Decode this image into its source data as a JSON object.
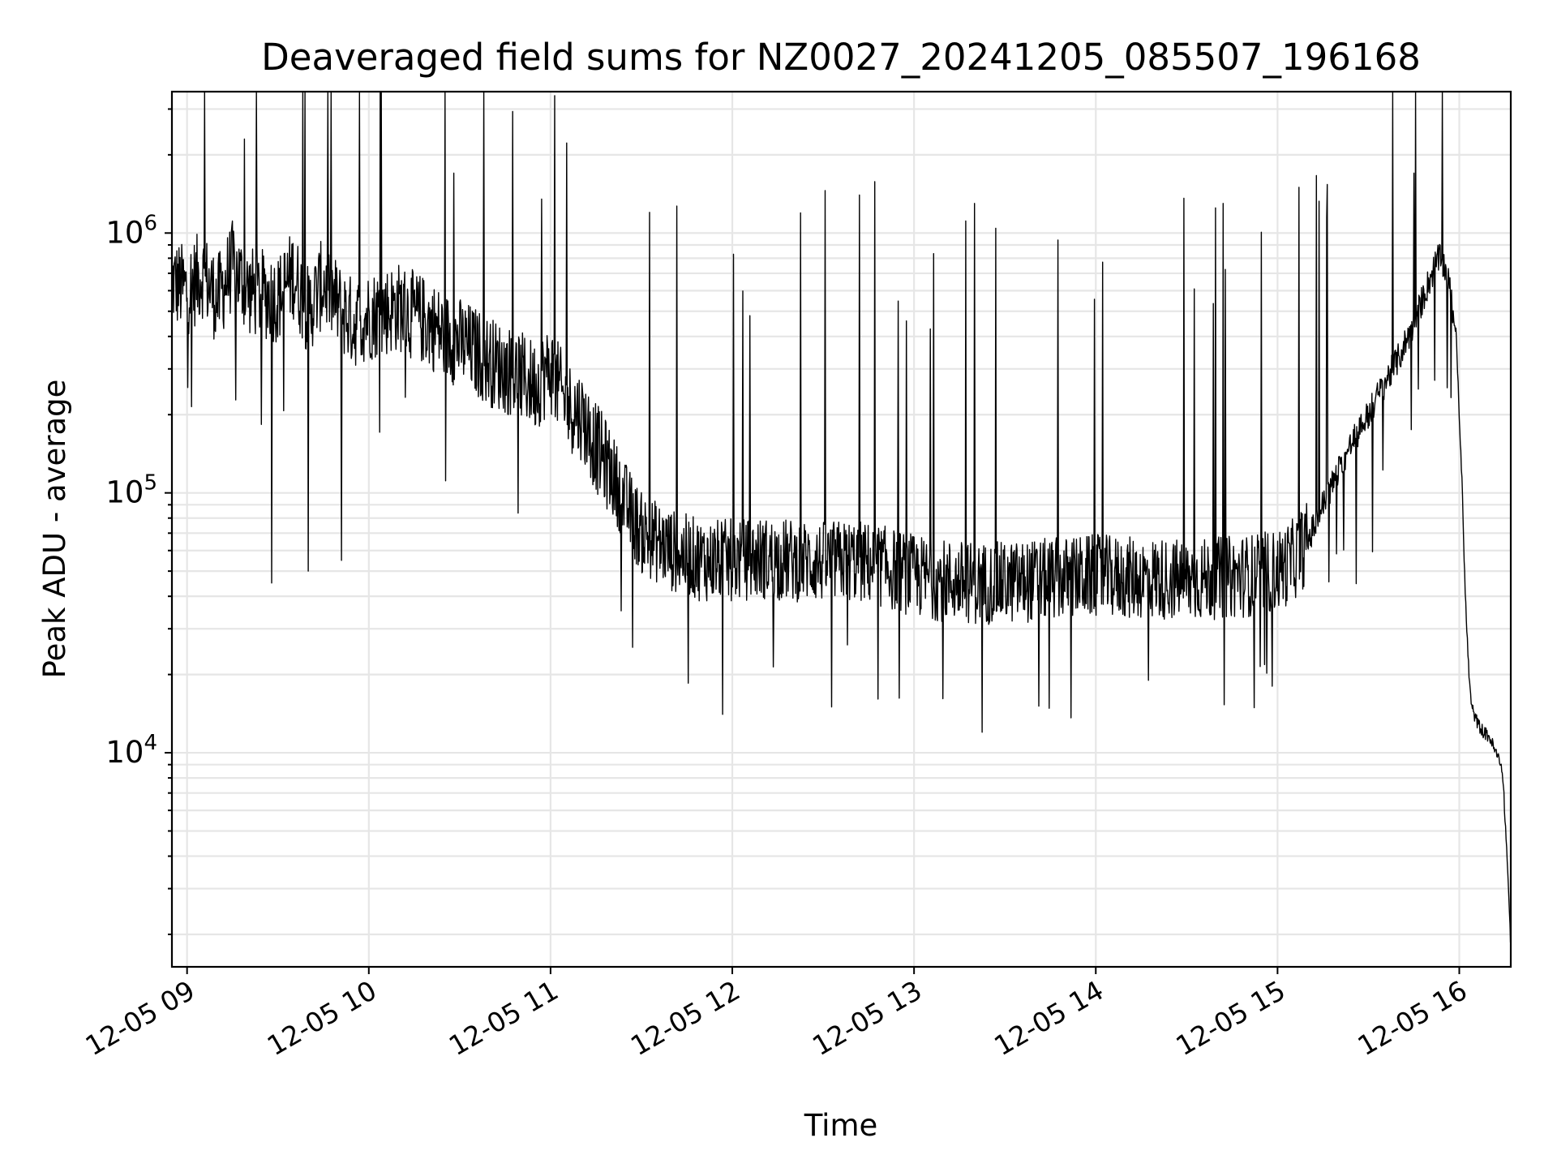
{
  "chart_data": {
    "type": "line",
    "title": "Deaveraged field sums for NZ0027_20241205_085507_196168",
    "xlabel": "Time",
    "ylabel": "Peak ADU - average",
    "yscale": "log",
    "xlim": [
      "2024-12-05 08:55",
      "2024-12-05 16:17"
    ],
    "ylim": [
      1500,
      3500000
    ],
    "grid": true,
    "x_ticks": [
      "12-05 09",
      "12-05 10",
      "12-05 11",
      "12-05 12",
      "12-05 13",
      "12-05 14",
      "12-05 15",
      "12-05 16"
    ],
    "y_ticks": [
      {
        "base": "10",
        "exp": "4",
        "value": 10000
      },
      {
        "base": "10",
        "exp": "5",
        "value": 100000
      },
      {
        "base": "10",
        "exp": "6",
        "value": 1000000
      }
    ],
    "series": [
      {
        "color": "#000000",
        "x": [
          "2024-12-05 08:55",
          "2024-12-05 09:00",
          "2024-12-05 09:05",
          "2024-12-05 09:10",
          "2024-12-05 09:15",
          "2024-12-05 09:20",
          "2024-12-05 09:25",
          "2024-12-05 09:30",
          "2024-12-05 09:35",
          "2024-12-05 09:40",
          "2024-12-05 09:45",
          "2024-12-05 09:50",
          "2024-12-05 09:55",
          "2024-12-05 10:00",
          "2024-12-05 10:05",
          "2024-12-05 10:10",
          "2024-12-05 10:15",
          "2024-12-05 10:20",
          "2024-12-05 10:25",
          "2024-12-05 10:30",
          "2024-12-05 10:35",
          "2024-12-05 10:40",
          "2024-12-05 10:45",
          "2024-12-05 10:50",
          "2024-12-05 10:55",
          "2024-12-05 11:00",
          "2024-12-05 11:05",
          "2024-12-05 11:10",
          "2024-12-05 11:15",
          "2024-12-05 11:20",
          "2024-12-05 11:25",
          "2024-12-05 11:30",
          "2024-12-05 11:40",
          "2024-12-05 11:50",
          "2024-12-05 12:00",
          "2024-12-05 12:10",
          "2024-12-05 12:20",
          "2024-12-05 12:30",
          "2024-12-05 12:40",
          "2024-12-05 12:50",
          "2024-12-05 13:00",
          "2024-12-05 13:10",
          "2024-12-05 13:20",
          "2024-12-05 13:30",
          "2024-12-05 13:40",
          "2024-12-05 13:50",
          "2024-12-05 14:00",
          "2024-12-05 14:10",
          "2024-12-05 14:20",
          "2024-12-05 14:30",
          "2024-12-05 14:40",
          "2024-12-05 14:50",
          "2024-12-05 15:00",
          "2024-12-05 15:05",
          "2024-12-05 15:10",
          "2024-12-05 15:15",
          "2024-12-05 15:20",
          "2024-12-05 15:25",
          "2024-12-05 15:30",
          "2024-12-05 15:35",
          "2024-12-05 15:40",
          "2024-12-05 15:45",
          "2024-12-05 15:50",
          "2024-12-05 15:53",
          "2024-12-05 15:55",
          "2024-12-05 15:57",
          "2024-12-05 15:59",
          "2024-12-05 16:00",
          "2024-12-05 16:01",
          "2024-12-05 16:02",
          "2024-12-05 16:03",
          "2024-12-05 16:04",
          "2024-12-05 16:06",
          "2024-12-05 16:08",
          "2024-12-05 16:10",
          "2024-12-05 16:12",
          "2024-12-05 16:14",
          "2024-12-05 16:15",
          "2024-12-05 16:16",
          "2024-12-05 16:17"
        ],
        "y": [
          650000,
          600000,
          700000,
          550000,
          750000,
          600000,
          580000,
          560000,
          700000,
          500000,
          650000,
          520000,
          450000,
          480000,
          500000,
          520000,
          480000,
          450000,
          400000,
          380000,
          350000,
          320000,
          300000,
          280000,
          260000,
          300000,
          220000,
          200000,
          150000,
          120000,
          90000,
          70000,
          60000,
          55000,
          55000,
          56000,
          55000,
          54000,
          55000,
          52000,
          48000,
          46000,
          45000,
          45000,
          46000,
          47000,
          48000,
          47000,
          47000,
          46000,
          47000,
          48000,
          50000,
          55000,
          65000,
          90000,
          120000,
          160000,
          200000,
          260000,
          330000,
          450000,
          650000,
          800000,
          750000,
          600000,
          400000,
          200000,
          100000,
          40000,
          22000,
          15000,
          13000,
          12000,
          11500,
          10000,
          9000,
          6000,
          3500,
          1800
        ],
        "spikes": [
          {
            "x": "2024-12-05 09:19",
            "y": 2300000
          },
          {
            "x": "2024-12-05 09:28",
            "y": 45000
          },
          {
            "x": "2024-12-05 09:40",
            "y": 50000
          },
          {
            "x": "2024-12-05 09:51",
            "y": 55000
          },
          {
            "x": "2024-12-05 10:28",
            "y": 1700000
          },
          {
            "x": "2024-12-05 10:57",
            "y": 1350000
          },
          {
            "x": "2024-12-05 12:42",
            "y": 1400000
          },
          {
            "x": "2024-12-05 12:38",
            "y": 26000
          },
          {
            "x": "2024-12-05 13:20",
            "y": 1300000
          },
          {
            "x": "2024-12-05 14:42",
            "y": 1300000
          },
          {
            "x": "2024-12-05 15:07",
            "y": 1500000
          },
          {
            "x": "2024-12-05 15:45",
            "y": 1700000
          }
        ]
      }
    ]
  }
}
